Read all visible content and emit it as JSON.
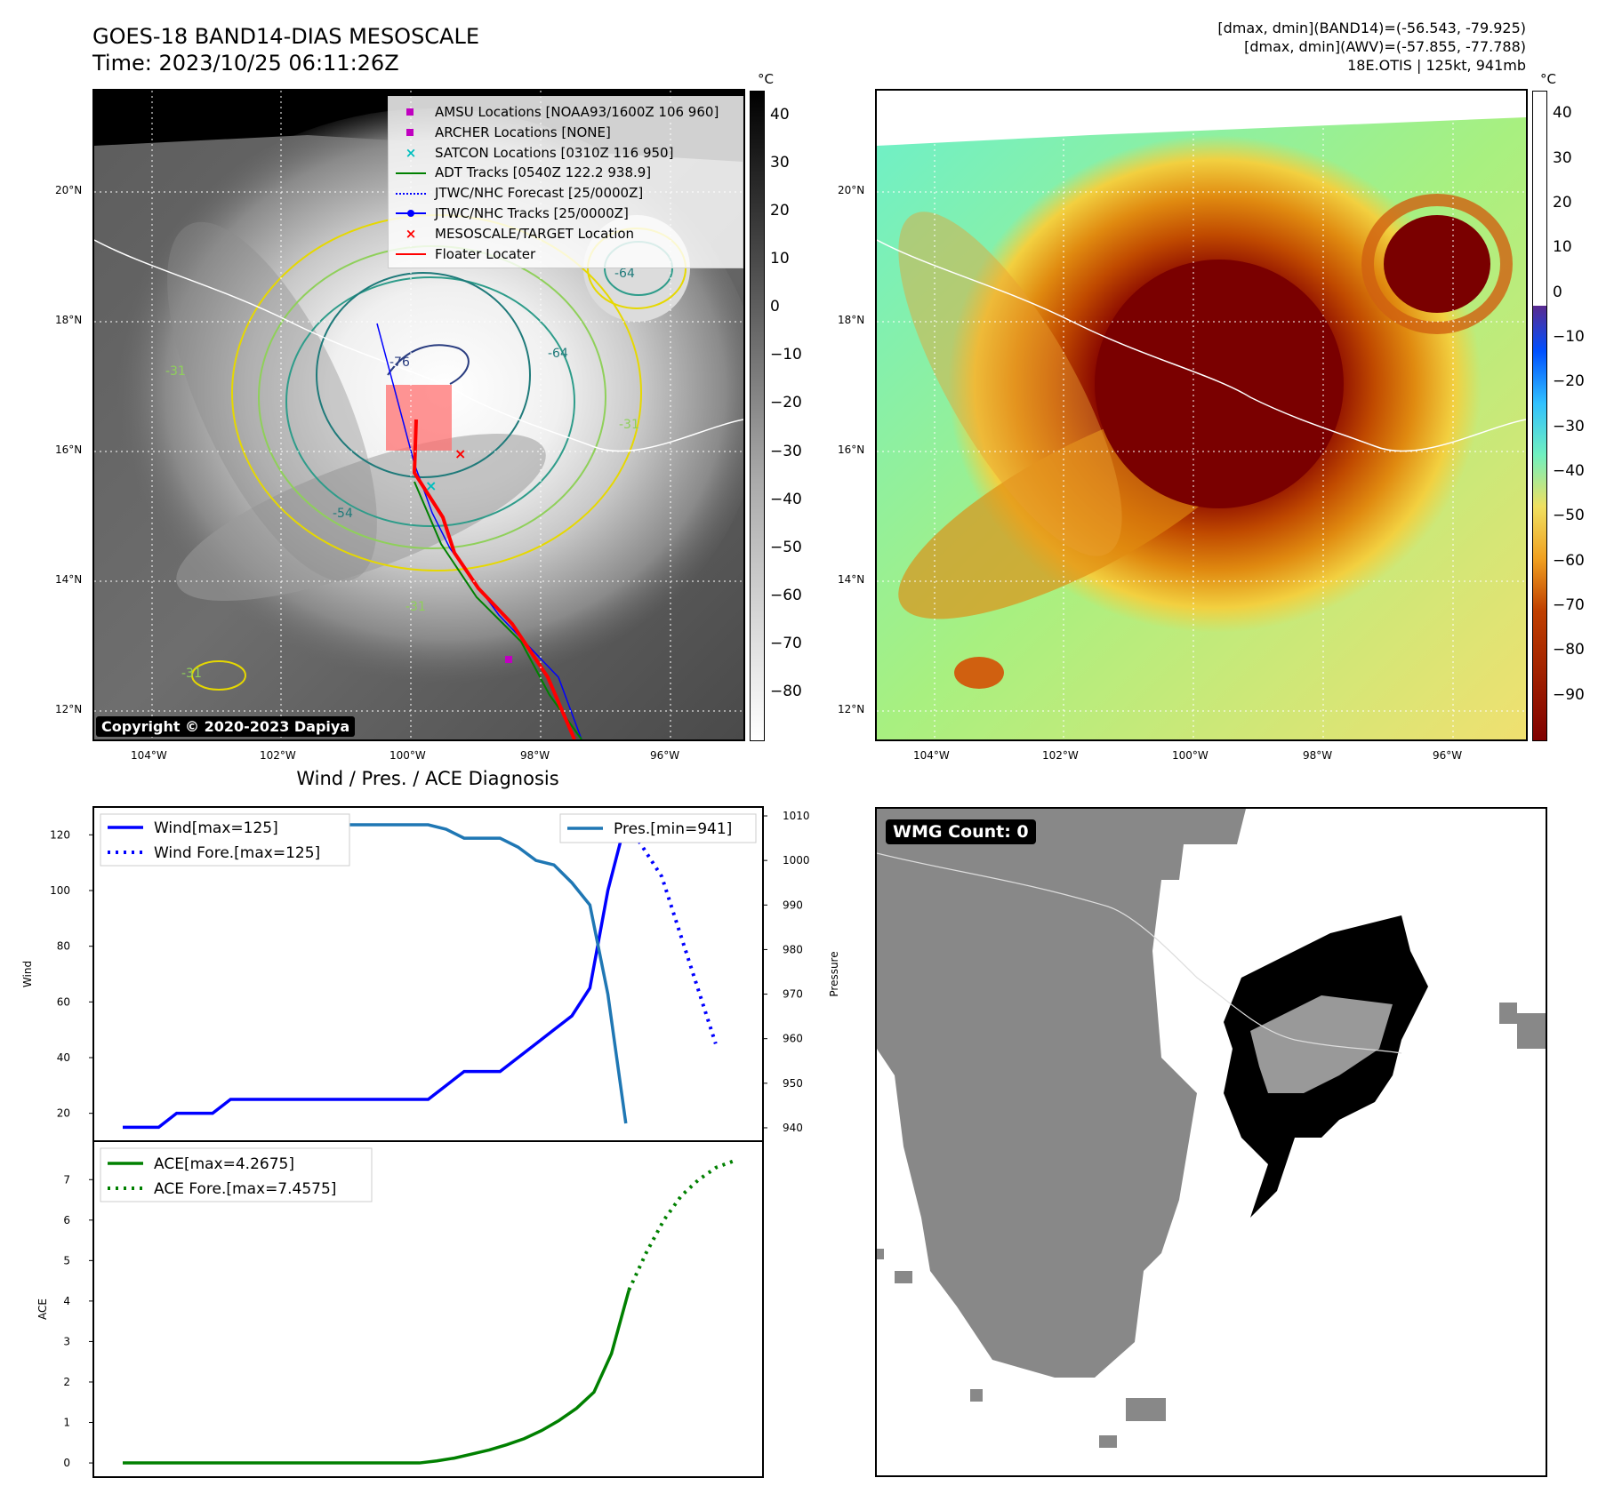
{
  "header": {
    "title_line1": "GOES-18 BAND14-DIAS MESOSCALE",
    "title_line2": "Time: 2023/10/25 06:11:26Z",
    "diag_line1": "[dmax, dmin](BAND14)=(-56.543, -79.925)",
    "diag_line2": "[dmax, dmin](AWV)=(-57.855, -77.788)",
    "diag_line3": "18E.OTIS | 125kt, 941mb"
  },
  "map_left": {
    "lat_labels": [
      "20°N",
      "18°N",
      "16°N",
      "14°N",
      "12°N"
    ],
    "lon_labels": [
      "104°W",
      "102°W",
      "100°W",
      "98°W",
      "96°W"
    ],
    "copyright": "Copyright © 2020-2023 Dapiya",
    "colorbar_unit": "°C",
    "colorbar_ticks": [
      "40",
      "30",
      "20",
      "10",
      "0",
      "−10",
      "−20",
      "−30",
      "−40",
      "−50",
      "−60",
      "−70",
      "−80"
    ],
    "contour_labels": [
      "-76",
      "-64",
      "-54",
      "-64",
      "-31",
      "-31",
      "-31",
      "-31",
      "-64"
    ],
    "legend": [
      {
        "label": "AMSU Locations [NOAA93/1600Z 106 960]",
        "symbol": "square",
        "color": "#c000c0"
      },
      {
        "label": "ARCHER Locations [NONE]",
        "symbol": "square",
        "color": "#c000c0"
      },
      {
        "label": "SATCON Locations [0310Z 116 950]",
        "symbol": "x",
        "color": "#00bfbf"
      },
      {
        "label": "ADT Tracks [0540Z 122.2 938.9]",
        "symbol": "line",
        "color": "#008000"
      },
      {
        "label": "JTWC/NHC Forecast [25/0000Z]",
        "symbol": "dotted",
        "color": "#0000ff"
      },
      {
        "label": "JTWC/NHC Tracks [25/0000Z]",
        "symbol": "line-dot",
        "color": "#0000ff"
      },
      {
        "label": "MESOSCALE/TARGET Location",
        "symbol": "x",
        "color": "#ff0000"
      },
      {
        "label": "Floater Locater",
        "symbol": "line",
        "color": "#ff0000"
      }
    ]
  },
  "map_right": {
    "lat_labels": [
      "20°N",
      "18°N",
      "16°N",
      "14°N",
      "12°N"
    ],
    "lon_labels": [
      "104°W",
      "102°W",
      "100°W",
      "98°W",
      "96°W"
    ],
    "colorbar_unit": "°C",
    "colorbar_ticks": [
      "40",
      "30",
      "20",
      "10",
      "0",
      "−10",
      "−20",
      "−30",
      "−40",
      "−50",
      "−60",
      "−70",
      "−80",
      "−90"
    ]
  },
  "wmg_panel": {
    "badge": "WMG Count: 0"
  },
  "chart_data": [
    {
      "type": "line",
      "title": "Wind / Pres. / ACE Diagnosis",
      "ylabel": "Wind",
      "y2label": "Pressure",
      "ylim": [
        10,
        130
      ],
      "y2lim": [
        937,
        1012
      ],
      "yticks": [
        20,
        40,
        60,
        80,
        100,
        120
      ],
      "y2ticks": [
        940,
        950,
        960,
        970,
        980,
        990,
        1000,
        1010
      ],
      "series": [
        {
          "name": "Wind[max=125]",
          "axis": "left",
          "style": "solid",
          "color": "#0000ff",
          "values": [
            15,
            15,
            15,
            20,
            20,
            20,
            25,
            25,
            25,
            25,
            25,
            25,
            25,
            25,
            25,
            25,
            25,
            25,
            30,
            35,
            35,
            35,
            40,
            45,
            50,
            55,
            65,
            100,
            125
          ]
        },
        {
          "name": "Wind Fore.[max=125]",
          "axis": "left",
          "style": "dotted",
          "color": "#0000ff",
          "values": [
            125,
            115,
            105,
            85,
            65,
            45
          ]
        },
        {
          "name": "Pres.[min=941]",
          "axis": "right",
          "style": "solid",
          "color": "#1f77b4",
          "values": [
            1010,
            1010,
            1010,
            1009,
            1009,
            1009,
            1008,
            1008,
            1008,
            1008,
            1008,
            1008,
            1008,
            1008,
            1008,
            1008,
            1008,
            1008,
            1007,
            1005,
            1005,
            1005,
            1003,
            1000,
            999,
            995,
            990,
            970,
            941
          ]
        }
      ]
    },
    {
      "type": "line",
      "ylabel": "ACE",
      "ylim": [
        -0.35,
        7.95
      ],
      "yticks": [
        0,
        1,
        2,
        3,
        4,
        5,
        6,
        7
      ],
      "series": [
        {
          "name": "ACE[max=4.2675]",
          "style": "solid",
          "color": "#008000",
          "values": [
            0,
            0,
            0,
            0,
            0,
            0,
            0,
            0,
            0,
            0,
            0,
            0,
            0,
            0,
            0,
            0,
            0,
            0,
            0.05,
            0.12,
            0.22,
            0.32,
            0.45,
            0.6,
            0.8,
            1.05,
            1.35,
            1.75,
            2.7,
            4.27
          ]
        },
        {
          "name": "ACE Fore.[max=7.4575]",
          "style": "dotted",
          "color": "#008000",
          "values": [
            4.27,
            5.2,
            6.0,
            6.6,
            7.0,
            7.3,
            7.46
          ]
        }
      ]
    }
  ]
}
